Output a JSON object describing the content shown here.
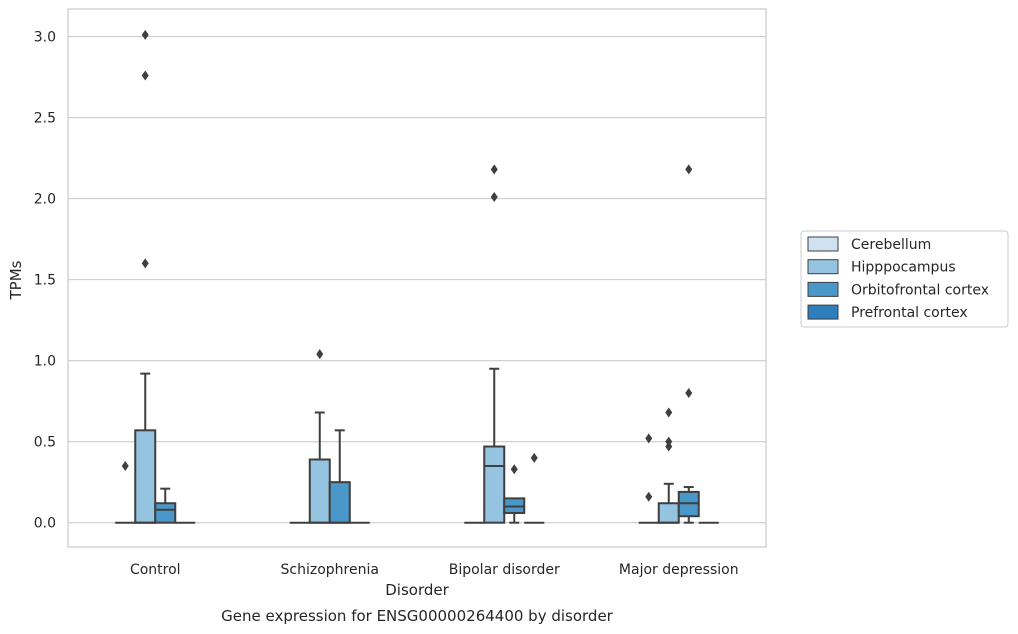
{
  "chart_data": {
    "type": "box",
    "title": "Gene expression for ENSG00000264400 by disorder",
    "xlabel": "Disorder",
    "ylabel": "TPMs",
    "ylim": [
      -0.15,
      3.17
    ],
    "yticks": [
      0.0,
      0.5,
      1.0,
      1.5,
      2.0,
      2.5,
      3.0
    ],
    "ytick_labels": [
      "0.0",
      "0.5",
      "1.0",
      "1.5",
      "2.0",
      "2.5",
      "3.0"
    ],
    "grid": "horizontal",
    "legend_position": "right",
    "categories": [
      "Control",
      "Schizophrenia",
      "Bipolar disorder",
      "Major depression"
    ],
    "series": [
      {
        "name": "Cerebellum",
        "color": "#d0e1f2",
        "boxes": [
          {
            "q1": 0,
            "median": 0,
            "q3": 0,
            "whisker_low": 0,
            "whisker_high": 0,
            "outliers": [
              0.35
            ]
          },
          {
            "q1": 0,
            "median": 0,
            "q3": 0,
            "whisker_low": 0,
            "whisker_high": 0,
            "outliers": []
          },
          {
            "q1": 0,
            "median": 0,
            "q3": 0,
            "whisker_low": 0,
            "whisker_high": 0,
            "outliers": []
          },
          {
            "q1": 0,
            "median": 0,
            "q3": 0,
            "whisker_low": 0,
            "whisker_high": 0,
            "outliers": [
              0.16,
              0.52
            ]
          }
        ]
      },
      {
        "name": "Hipppocampus",
        "color": "#94c4df",
        "boxes": [
          {
            "q1": 0,
            "median": 0,
            "q3": 0.57,
            "whisker_low": 0,
            "whisker_high": 0.92,
            "outliers": [
              1.6,
              2.76,
              3.01
            ]
          },
          {
            "q1": 0,
            "median": 0,
            "q3": 0.39,
            "whisker_low": 0,
            "whisker_high": 0.68,
            "outliers": [
              1.04
            ]
          },
          {
            "q1": 0,
            "median": 0.35,
            "q3": 0.47,
            "whisker_low": 0,
            "whisker_high": 0.95,
            "outliers": [
              2.01,
              2.18
            ]
          },
          {
            "q1": 0,
            "median": 0,
            "q3": 0.12,
            "whisker_low": 0,
            "whisker_high": 0.24,
            "outliers": [
              0.47,
              0.5,
              0.68
            ]
          }
        ]
      },
      {
        "name": "Orbitofrontal cortex",
        "color": "#4a98c9",
        "boxes": [
          {
            "q1": 0,
            "median": 0.08,
            "q3": 0.12,
            "whisker_low": 0,
            "whisker_high": 0.21,
            "outliers": []
          },
          {
            "q1": 0,
            "median": 0,
            "q3": 0.25,
            "whisker_low": 0,
            "whisker_high": 0.57,
            "outliers": []
          },
          {
            "q1": 0.06,
            "median": 0.1,
            "q3": 0.15,
            "whisker_low": 0,
            "whisker_high": 0.15,
            "outliers": [
              0.33
            ]
          },
          {
            "q1": 0.04,
            "median": 0.12,
            "q3": 0.19,
            "whisker_low": 0,
            "whisker_high": 0.22,
            "outliers": [
              0.8,
              2.18
            ]
          }
        ]
      },
      {
        "name": "Prefrontal cortex",
        "color": "#2e7ebc",
        "boxes": [
          {
            "q1": 0,
            "median": 0,
            "q3": 0,
            "whisker_low": 0,
            "whisker_high": 0,
            "outliers": []
          },
          {
            "q1": 0,
            "median": 0,
            "q3": 0,
            "whisker_low": 0,
            "whisker_high": 0,
            "outliers": []
          },
          {
            "q1": 0,
            "median": 0,
            "q3": 0,
            "whisker_low": 0,
            "whisker_high": 0,
            "outliers": [
              0.4
            ]
          },
          {
            "q1": 0,
            "median": 0,
            "q3": 0,
            "whisker_low": 0,
            "whisker_high": 0,
            "outliers": []
          }
        ]
      }
    ]
  }
}
